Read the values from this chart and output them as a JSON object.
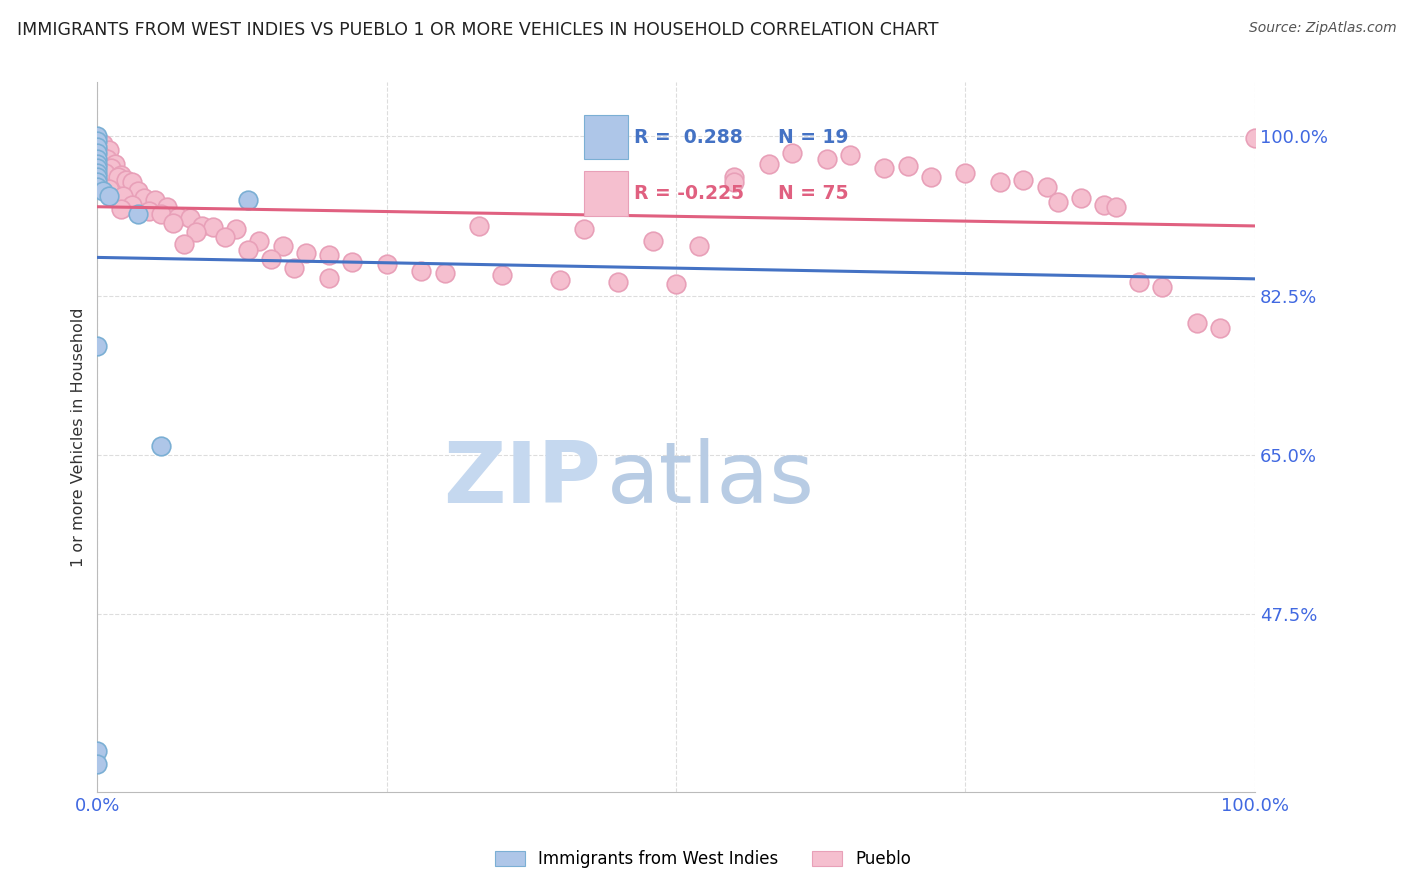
{
  "title": "IMMIGRANTS FROM WEST INDIES VS PUEBLO 1 OR MORE VEHICLES IN HOUSEHOLD CORRELATION CHART",
  "source": "Source: ZipAtlas.com",
  "ylabel": "1 or more Vehicles in Household",
  "yticks": [
    47.5,
    65.0,
    82.5,
    100.0
  ],
  "ytick_labels": [
    "47.5%",
    "65.0%",
    "82.5%",
    "100.0%"
  ],
  "xmin": 0.0,
  "xmax": 100.0,
  "ymin": 28.0,
  "ymax": 106.0,
  "legend_blue_r": "R =  0.288",
  "legend_blue_n": "N = 19",
  "legend_pink_r": "R = -0.225",
  "legend_pink_n": "N = 75",
  "blue_scatter": [
    [
      0.0,
      100.0
    ],
    [
      0.0,
      99.5
    ],
    [
      0.0,
      98.8
    ],
    [
      0.0,
      98.2
    ],
    [
      0.0,
      97.5
    ],
    [
      0.0,
      97.0
    ],
    [
      0.0,
      96.5
    ],
    [
      0.0,
      96.0
    ],
    [
      0.0,
      95.5
    ],
    [
      0.0,
      95.0
    ],
    [
      0.0,
      94.5
    ],
    [
      0.5,
      94.0
    ],
    [
      1.0,
      93.5
    ],
    [
      0.0,
      77.0
    ],
    [
      3.5,
      91.5
    ],
    [
      5.5,
      66.0
    ],
    [
      13.0,
      93.0
    ],
    [
      0.0,
      32.5
    ],
    [
      0.0,
      31.0
    ]
  ],
  "pink_scatter": [
    [
      0.0,
      99.8
    ],
    [
      0.5,
      99.2
    ],
    [
      1.0,
      98.5
    ],
    [
      0.2,
      98.0
    ],
    [
      0.8,
      97.5
    ],
    [
      1.5,
      97.0
    ],
    [
      0.3,
      96.8
    ],
    [
      1.2,
      96.5
    ],
    [
      0.7,
      96.0
    ],
    [
      2.0,
      95.8
    ],
    [
      1.8,
      95.5
    ],
    [
      2.5,
      95.2
    ],
    [
      3.0,
      95.0
    ],
    [
      0.5,
      94.5
    ],
    [
      1.0,
      94.2
    ],
    [
      3.5,
      94.0
    ],
    [
      2.2,
      93.5
    ],
    [
      4.0,
      93.2
    ],
    [
      5.0,
      93.0
    ],
    [
      3.0,
      92.5
    ],
    [
      6.0,
      92.2
    ],
    [
      2.0,
      92.0
    ],
    [
      4.5,
      91.8
    ],
    [
      5.5,
      91.5
    ],
    [
      7.0,
      91.2
    ],
    [
      8.0,
      91.0
    ],
    [
      6.5,
      90.5
    ],
    [
      9.0,
      90.2
    ],
    [
      10.0,
      90.0
    ],
    [
      12.0,
      89.8
    ],
    [
      8.5,
      89.5
    ],
    [
      11.0,
      89.0
    ],
    [
      14.0,
      88.5
    ],
    [
      7.5,
      88.2
    ],
    [
      16.0,
      88.0
    ],
    [
      13.0,
      87.5
    ],
    [
      18.0,
      87.2
    ],
    [
      20.0,
      87.0
    ],
    [
      15.0,
      86.5
    ],
    [
      22.0,
      86.2
    ],
    [
      25.0,
      86.0
    ],
    [
      17.0,
      85.5
    ],
    [
      28.0,
      85.2
    ],
    [
      30.0,
      85.0
    ],
    [
      35.0,
      84.8
    ],
    [
      20.0,
      84.5
    ],
    [
      40.0,
      84.2
    ],
    [
      45.0,
      84.0
    ],
    [
      50.0,
      83.8
    ],
    [
      55.0,
      95.5
    ],
    [
      55.0,
      95.0
    ],
    [
      33.0,
      90.2
    ],
    [
      42.0,
      89.8
    ],
    [
      48.0,
      88.5
    ],
    [
      52.0,
      88.0
    ],
    [
      60.0,
      98.2
    ],
    [
      65.0,
      98.0
    ],
    [
      58.0,
      97.0
    ],
    [
      63.0,
      97.5
    ],
    [
      70.0,
      96.8
    ],
    [
      68.0,
      96.5
    ],
    [
      75.0,
      96.0
    ],
    [
      72.0,
      95.5
    ],
    [
      80.0,
      95.2
    ],
    [
      78.0,
      95.0
    ],
    [
      82.0,
      94.5
    ],
    [
      85.0,
      93.2
    ],
    [
      83.0,
      92.8
    ],
    [
      87.0,
      92.5
    ],
    [
      88.0,
      92.2
    ],
    [
      90.0,
      84.0
    ],
    [
      92.0,
      83.5
    ],
    [
      95.0,
      79.5
    ],
    [
      97.0,
      79.0
    ],
    [
      100.0,
      99.8
    ]
  ],
  "blue_color": "#aec6e8",
  "pink_color": "#f5bfcf",
  "blue_edge_color": "#7bafd4",
  "pink_edge_color": "#e8a0b8",
  "blue_line_color": "#4472c4",
  "pink_line_color": "#e06080",
  "watermark_zip_color": "#c5d8ef",
  "watermark_atlas_color": "#b8cce4",
  "background_color": "#ffffff",
  "grid_color": "#dddddd",
  "tick_label_color": "#4169e1",
  "title_color": "#222222",
  "source_color": "#555555",
  "ylabel_color": "#333333",
  "legend_border_color": "#cccccc",
  "bottom_legend_labels": [
    "Immigrants from West Indies",
    "Pueblo"
  ]
}
